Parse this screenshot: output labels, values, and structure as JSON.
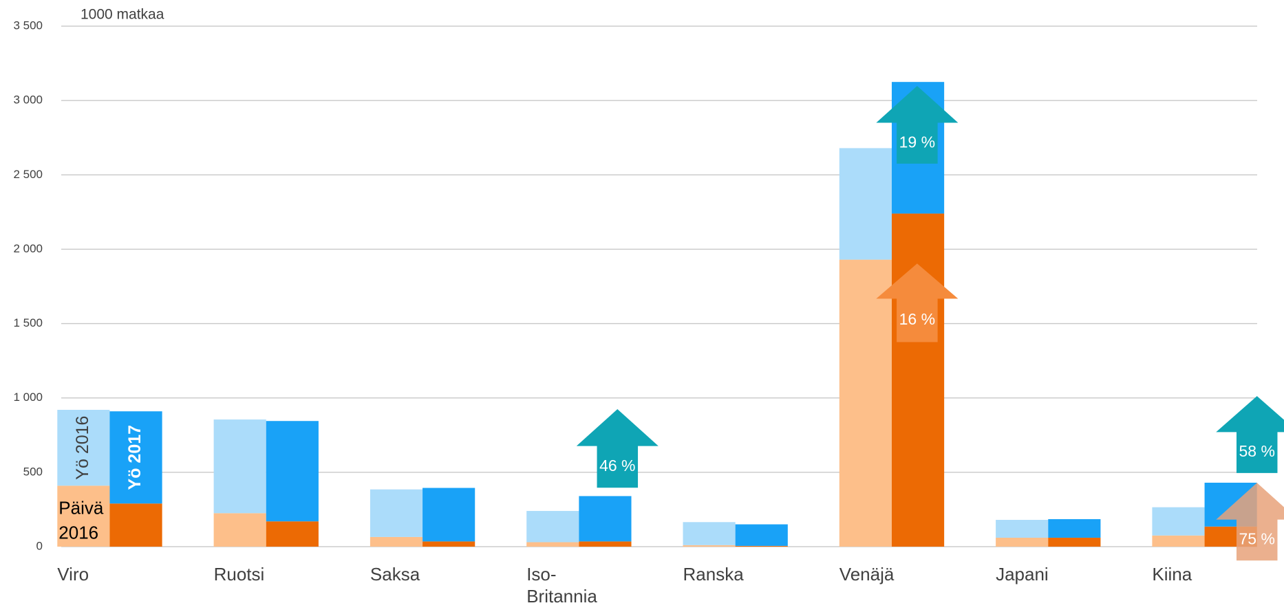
{
  "chart_data": {
    "type": "bar",
    "stacked": true,
    "y_axis_label": "1000 matkaa",
    "categories": [
      "Viro",
      "Ruotsi",
      "Saksa",
      "Iso-Britannia",
      "Ranska",
      "Venäjä",
      "Japani",
      "Kiina"
    ],
    "series": [
      {
        "name": "Päivä 2016",
        "color": "#fdbf8a",
        "stack": 0,
        "values": [
          410,
          225,
          65,
          30,
          10,
          1930,
          60,
          75
        ]
      },
      {
        "name": "Yö 2016",
        "color": "#abdcfa",
        "stack": 0,
        "values": [
          510,
          630,
          320,
          210,
          155,
          750,
          120,
          190
        ]
      },
      {
        "color": "#ec6a04",
        "stack": 1,
        "values": [
          290,
          170,
          35,
          35,
          5,
          2240,
          60,
          135
        ]
      },
      {
        "name": "Yö 2017",
        "color": "#19a2f7",
        "stack": 1,
        "values": [
          620,
          675,
          360,
          305,
          145,
          885,
          125,
          295
        ]
      }
    ],
    "ylim": [
      0,
      3500
    ],
    "yticks": [
      0,
      500,
      {
        "value": 1000,
        "label": "1 000"
      },
      {
        "value": 1500,
        "label": "1 500"
      },
      {
        "value": 2000,
        "label": "2 000"
      },
      {
        "value": 2500,
        "label": "2 500"
      },
      {
        "value": 3000,
        "label": "3 000"
      },
      {
        "value": 3500,
        "label": "3 500"
      }
    ],
    "grid": true,
    "annotations": [
      {
        "text": "19 %",
        "color": "#0fa5b5"
      },
      {
        "text": "16 %",
        "color": "#f58b3c"
      },
      {
        "text": "46 %",
        "color": "#0fa5b5"
      },
      {
        "text": "58 %",
        "color": "#0fa5b5"
      },
      {
        "text": "75 %",
        "color": "#e8a27a"
      }
    ]
  }
}
